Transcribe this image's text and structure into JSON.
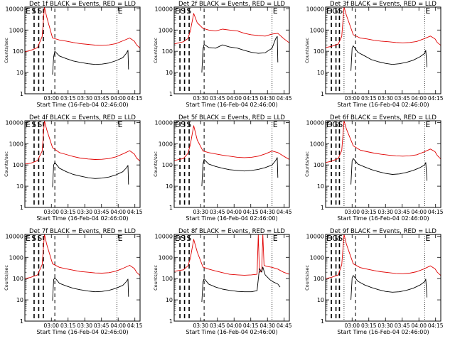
{
  "title": "",
  "colors": {
    "events": "#000000",
    "lld": "#e00000",
    "axis": "#000000"
  },
  "chart_data": [
    {
      "type": "line",
      "scale": "log",
      "title": "Det 1f BLACK = Events, RED = LLD",
      "xlabel": "Start Time (16-Feb-04 02:46:00)",
      "ylabel": "Counts/sec",
      "xticks": [
        "03:00",
        "03:15",
        "03:30",
        "03:45",
        "04:00",
        "04:15"
      ],
      "yticks": [
        "1",
        "10",
        "100",
        "1000",
        "10000"
      ],
      "x_range_min": [
        0,
        100
      ],
      "ylim": [
        1,
        12000
      ],
      "marker_labels": [
        "E",
        "S",
        "S",
        "E"
      ],
      "series": [
        {
          "color_name": "lld",
          "x": [
            0,
            5,
            11,
            15,
            17,
            19,
            24,
            30,
            36,
            42,
            48,
            55,
            61,
            67,
            73,
            79,
            85,
            91,
            95,
            97,
            100
          ],
          "y": [
            95,
            110,
            150,
            500,
            12000,
            4000,
            420,
            340,
            300,
            260,
            230,
            210,
            195,
            190,
            200,
            230,
            310,
            420,
            300,
            200,
            140
          ]
        },
        {
          "color_name": "events",
          "x": [
            24,
            25,
            26,
            30,
            36,
            42,
            48,
            55,
            61,
            67,
            73,
            79,
            85,
            88,
            89.5,
            90
          ],
          "y": [
            8,
            55,
            100,
            60,
            45,
            35,
            30,
            26,
            24,
            25,
            28,
            36,
            50,
            80,
            110,
            14
          ]
        }
      ]
    },
    {
      "type": "line",
      "scale": "log",
      "title": "Det 2f BLACK = Events, RED = LLD",
      "xlabel": "Start Time (16-Feb-04 02:46:00)",
      "ylabel": "Counts/sec",
      "xticks": [
        "03:30",
        "03:45",
        "04:00",
        "04:15",
        "04:30",
        "04:45"
      ],
      "yticks": [
        "1",
        "10",
        "100",
        "1000",
        "10000"
      ],
      "x_range_min": [
        0,
        100
      ],
      "ylim": [
        1,
        12000
      ],
      "marker_labels": [
        "E",
        "S",
        "S",
        "E"
      ],
      "series": [
        {
          "color_name": "lld",
          "x": [
            0,
            4,
            8,
            12,
            14,
            17,
            20,
            25,
            30,
            36,
            42,
            48,
            55,
            61,
            67,
            73,
            79,
            85,
            90,
            95,
            100
          ],
          "y": [
            220,
            250,
            280,
            400,
            900,
            6000,
            2200,
            1200,
            1000,
            900,
            1100,
            1000,
            900,
            700,
            600,
            550,
            520,
            650,
            700,
            400,
            250
          ]
        },
        {
          "color_name": "events",
          "x": [
            24,
            25,
            26,
            30,
            36,
            42,
            48,
            55,
            61,
            67,
            73,
            79,
            85,
            88,
            89.5,
            90
          ],
          "y": [
            10,
            130,
            210,
            150,
            140,
            200,
            160,
            140,
            110,
            90,
            80,
            85,
            140,
            380,
            500,
            30
          ]
        }
      ]
    },
    {
      "type": "line",
      "scale": "log",
      "title": "Det 3f BLACK = Events, RED = LLD",
      "xlabel": "Start Time (16-Feb-04 02:46:00)",
      "ylabel": "Counts/sec",
      "xticks": [
        "03:00",
        "03:15",
        "03:30",
        "03:45",
        "04:00",
        "04:15"
      ],
      "yticks": [
        "1",
        "10",
        "100",
        "1000",
        "10000"
      ],
      "x_range_min": [
        0,
        100
      ],
      "ylim": [
        1,
        12000
      ],
      "marker_labels": [
        "E",
        "G",
        "S",
        "E"
      ],
      "series": [
        {
          "color_name": "lld",
          "x": [
            0,
            5,
            11,
            14,
            16,
            18,
            24,
            30,
            36,
            42,
            48,
            55,
            61,
            67,
            73,
            79,
            85,
            91,
            95,
            97,
            100
          ],
          "y": [
            150,
            170,
            220,
            500,
            12000,
            5000,
            600,
            420,
            380,
            330,
            300,
            280,
            260,
            250,
            260,
            290,
            380,
            520,
            380,
            260,
            190
          ]
        },
        {
          "color_name": "events",
          "x": [
            22,
            23,
            24,
            28,
            34,
            40,
            46,
            52,
            58,
            64,
            70,
            76,
            82,
            86,
            87,
            88
          ],
          "y": [
            12,
            140,
            180,
            90,
            60,
            40,
            32,
            27,
            24,
            26,
            30,
            38,
            55,
            80,
            110,
            18
          ]
        }
      ]
    },
    {
      "type": "line",
      "scale": "log",
      "title": "Det 4f BLACK = Events, RED = LLD",
      "xlabel": "Start Time (16-Feb-04 02:46:00)",
      "ylabel": "Counts/sec",
      "xticks": [
        "03:00",
        "03:15",
        "03:30",
        "03:45",
        "04:00",
        "04:15"
      ],
      "yticks": [
        "1",
        "10",
        "100",
        "1000",
        "10000"
      ],
      "x_range_min": [
        0,
        100
      ],
      "ylim": [
        1,
        12000
      ],
      "marker_labels": [
        "E",
        "S",
        "S",
        "E"
      ],
      "series": [
        {
          "color_name": "lld",
          "x": [
            0,
            5,
            11,
            15,
            17,
            19,
            24,
            30,
            36,
            42,
            48,
            55,
            61,
            67,
            73,
            79,
            85,
            91,
            95,
            97,
            100
          ],
          "y": [
            110,
            120,
            160,
            450,
            12000,
            4500,
            650,
            380,
            310,
            250,
            210,
            190,
            180,
            185,
            200,
            240,
            330,
            470,
            330,
            210,
            150
          ]
        },
        {
          "color_name": "events",
          "x": [
            24,
            25,
            26,
            30,
            36,
            42,
            48,
            55,
            61,
            67,
            73,
            79,
            85,
            88,
            89.5,
            90
          ],
          "y": [
            9,
            100,
            130,
            70,
            48,
            36,
            30,
            25,
            23,
            24,
            27,
            34,
            48,
            72,
            95,
            12
          ]
        }
      ]
    },
    {
      "type": "line",
      "scale": "log",
      "title": "Det 5f BLACK = Events, RED = LLD",
      "xlabel": "Start Time (16-Feb-04 02:46:00)",
      "ylabel": "Counts/sec",
      "xticks": [
        "03:30",
        "03:45",
        "04:00",
        "04:15",
        "04:30",
        "04:45"
      ],
      "yticks": [
        "1",
        "10",
        "100",
        "1000",
        "10000"
      ],
      "x_range_min": [
        0,
        100
      ],
      "ylim": [
        1,
        12000
      ],
      "marker_labels": [
        "E",
        "S",
        "S",
        "E"
      ],
      "series": [
        {
          "color_name": "lld",
          "x": [
            0,
            4,
            8,
            12,
            14,
            17,
            20,
            25,
            30,
            36,
            42,
            48,
            55,
            61,
            67,
            73,
            79,
            85,
            90,
            95,
            100
          ],
          "y": [
            160,
            180,
            200,
            350,
            900,
            7000,
            1500,
            450,
            380,
            330,
            290,
            260,
            230,
            220,
            230,
            260,
            330,
            450,
            380,
            260,
            180
          ]
        },
        {
          "color_name": "events",
          "x": [
            24,
            25,
            26,
            30,
            36,
            42,
            48,
            55,
            61,
            67,
            73,
            79,
            85,
            88,
            89.5,
            90
          ],
          "y": [
            10,
            110,
            180,
            110,
            85,
            70,
            60,
            55,
            52,
            55,
            62,
            75,
            100,
            160,
            220,
            25
          ]
        }
      ]
    },
    {
      "type": "line",
      "scale": "log",
      "title": "Det 6f BLACK = Events, RED = LLD",
      "xlabel": "Start Time (16-Feb-04 02:46:00)",
      "ylabel": "Counts/sec",
      "xticks": [
        "03:00",
        "03:15",
        "03:30",
        "03:45",
        "04:00",
        "04:15"
      ],
      "yticks": [
        "1",
        "10",
        "100",
        "1000",
        "10000"
      ],
      "x_range_min": [
        0,
        100
      ],
      "ylim": [
        1,
        12000
      ],
      "marker_labels": [
        "E",
        "G",
        "S",
        "E"
      ],
      "series": [
        {
          "color_name": "lld",
          "x": [
            0,
            5,
            11,
            14,
            16,
            18,
            24,
            30,
            36,
            42,
            48,
            55,
            61,
            67,
            73,
            79,
            85,
            91,
            95,
            97,
            100
          ],
          "y": [
            130,
            150,
            200,
            480,
            12000,
            5000,
            800,
            500,
            420,
            360,
            320,
            290,
            270,
            260,
            270,
            300,
            400,
            560,
            420,
            280,
            190
          ]
        },
        {
          "color_name": "events",
          "x": [
            22,
            23,
            24,
            28,
            34,
            40,
            46,
            52,
            58,
            64,
            70,
            76,
            82,
            86,
            87,
            88
          ],
          "y": [
            12,
            160,
            200,
            110,
            80,
            60,
            48,
            40,
            36,
            38,
            44,
            55,
            75,
            100,
            130,
            18
          ]
        }
      ]
    },
    {
      "type": "line",
      "scale": "log",
      "title": "Det 7f BLACK = Events, RED = LLD",
      "xlabel": "Start Time (16-Feb-04 02:46:00)",
      "ylabel": "Counts/sec",
      "xticks": [
        "03:00",
        "03:15",
        "03:30",
        "03:45",
        "04:00",
        "04:15"
      ],
      "yticks": [
        "1",
        "10",
        "100",
        "1000",
        "10000"
      ],
      "x_range_min": [
        0,
        100
      ],
      "ylim": [
        1,
        12000
      ],
      "marker_labels": [
        "E",
        "S",
        "S",
        "E"
      ],
      "series": [
        {
          "color_name": "lld",
          "x": [
            0,
            5,
            11,
            15,
            17,
            19,
            24,
            30,
            36,
            42,
            48,
            55,
            61,
            67,
            73,
            79,
            85,
            91,
            95,
            97,
            100
          ],
          "y": [
            100,
            115,
            150,
            460,
            12000,
            4000,
            500,
            340,
            290,
            250,
            215,
            200,
            185,
            180,
            190,
            225,
            300,
            420,
            300,
            200,
            140
          ]
        },
        {
          "color_name": "events",
          "x": [
            24,
            25,
            26,
            30,
            36,
            42,
            48,
            55,
            61,
            67,
            73,
            79,
            85,
            88,
            89.5,
            90
          ],
          "y": [
            9,
            90,
            110,
            60,
            45,
            35,
            30,
            26,
            24,
            25,
            28,
            35,
            48,
            72,
            95,
            14
          ]
        }
      ]
    },
    {
      "type": "line",
      "scale": "log",
      "title": "Det 8f BLACK = Events, RED = LLD",
      "xlabel": "Start Time (16-Feb-04 02:46:00)",
      "ylabel": "Counts/sec",
      "xticks": [
        "03:30",
        "03:45",
        "04:00",
        "04:15",
        "04:30",
        "04:45"
      ],
      "yticks": [
        "1",
        "10",
        "100",
        "1000",
        "10000"
      ],
      "x_range_min": [
        0,
        100
      ],
      "ylim": [
        1,
        12000
      ],
      "marker_labels": [
        "E",
        "S",
        "S",
        "E"
      ],
      "series": [
        {
          "color_name": "lld",
          "x": [
            0,
            4,
            8,
            12,
            14,
            17,
            20,
            25,
            30,
            36,
            42,
            48,
            55,
            61,
            67,
            72,
            73,
            74,
            76,
            77,
            78,
            80,
            85,
            90,
            95,
            100
          ],
          "y": [
            220,
            240,
            260,
            400,
            900,
            7000,
            1800,
            350,
            280,
            230,
            190,
            160,
            150,
            145,
            150,
            160,
            12000,
            200,
            220,
            12000,
            420,
            380,
            340,
            280,
            200,
            160
          ]
        },
        {
          "color_name": "events",
          "x": [
            24,
            25,
            26,
            30,
            36,
            42,
            48,
            55,
            61,
            67,
            72,
            74,
            76,
            77,
            79,
            83,
            86,
            90,
            92
          ],
          "y": [
            8,
            70,
            100,
            55,
            40,
            32,
            28,
            25,
            24,
            24,
            27,
            300,
            200,
            350,
            150,
            90,
            70,
            55,
            40
          ]
        }
      ]
    },
    {
      "type": "line",
      "scale": "log",
      "title": "Det 9f BLACK = Events, RED = LLD",
      "xlabel": "Start Time (16-Feb-04 02:46:00)",
      "ylabel": "Counts/sec",
      "xticks": [
        "03:00",
        "03:15",
        "03:30",
        "03:45",
        "04:00",
        "04:15"
      ],
      "yticks": [
        "1",
        "10",
        "100",
        "1000",
        "10000"
      ],
      "x_range_min": [
        0,
        100
      ],
      "ylim": [
        1,
        12000
      ],
      "marker_labels": [
        "E",
        "G",
        "S",
        "E"
      ],
      "series": [
        {
          "color_name": "lld",
          "x": [
            0,
            5,
            11,
            14,
            16,
            18,
            24,
            30,
            36,
            42,
            48,
            55,
            61,
            67,
            73,
            79,
            85,
            91,
            95,
            97,
            100
          ],
          "y": [
            100,
            115,
            150,
            450,
            12000,
            4200,
            500,
            330,
            280,
            240,
            210,
            190,
            175,
            170,
            180,
            210,
            280,
            400,
            290,
            200,
            140
          ]
        },
        {
          "color_name": "events",
          "x": [
            22,
            23,
            24,
            28,
            34,
            40,
            46,
            52,
            58,
            64,
            70,
            76,
            82,
            86,
            87,
            88
          ],
          "y": [
            10,
            110,
            140,
            75,
            50,
            38,
            30,
            25,
            23,
            24,
            28,
            35,
            50,
            72,
            95,
            13
          ]
        }
      ]
    }
  ]
}
